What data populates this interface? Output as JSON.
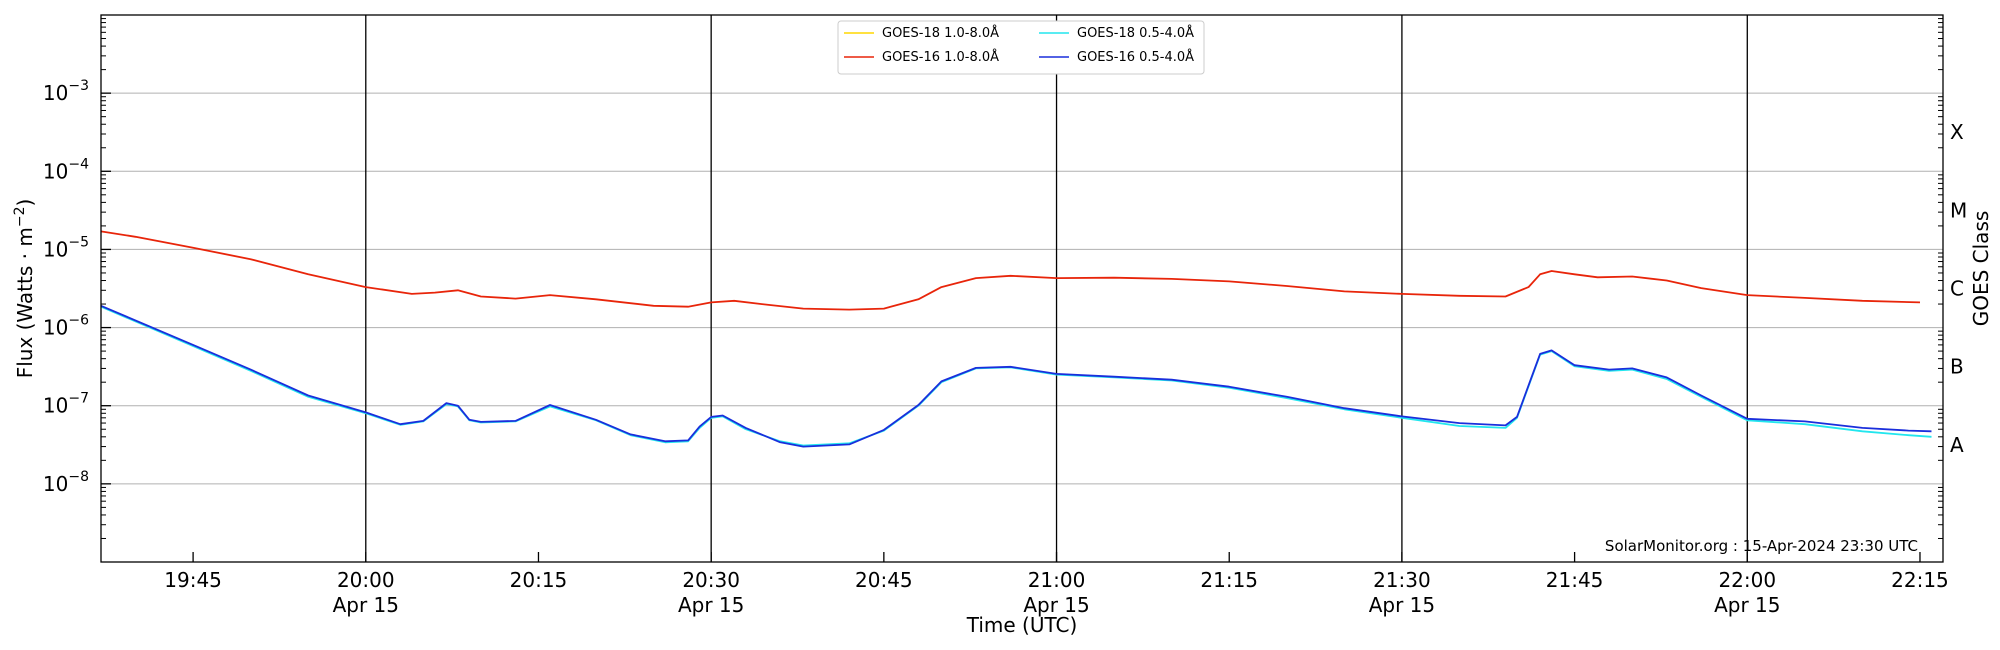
{
  "chart_data": {
    "type": "line",
    "xlabel": "Time (UTC)",
    "ylabel": "Flux (Watts · m",
    "ylabel_sup": "−2",
    "ylabel_close": ")",
    "y2label": "GOES Class",
    "yscale": "log",
    "xlim": [
      "19:37",
      "22:17"
    ],
    "ylim": [
      1e-09,
      0.01
    ],
    "grid": "horizontal",
    "legend_placement": "top-center",
    "x_ticks": [
      {
        "t": "19:45",
        "label": "19:45",
        "date": ""
      },
      {
        "t": "20:00",
        "label": "20:00",
        "date": "Apr 15"
      },
      {
        "t": "20:15",
        "label": "20:15",
        "date": ""
      },
      {
        "t": "20:30",
        "label": "20:30",
        "date": "Apr 15"
      },
      {
        "t": "20:45",
        "label": "20:45",
        "date": ""
      },
      {
        "t": "21:00",
        "label": "21:00",
        "date": "Apr 15"
      },
      {
        "t": "21:15",
        "label": "21:15",
        "date": ""
      },
      {
        "t": "21:30",
        "label": "21:30",
        "date": "Apr 15"
      },
      {
        "t": "21:45",
        "label": "21:45",
        "date": ""
      },
      {
        "t": "22:00",
        "label": "22:00",
        "date": "Apr 15"
      },
      {
        "t": "22:15",
        "label": "22:15",
        "date": ""
      }
    ],
    "vlines": [
      "20:00",
      "20:30",
      "21:00",
      "21:30",
      "22:00"
    ],
    "y_ticks": [
      {
        "exp": -8,
        "base": "10",
        "sup": "−8"
      },
      {
        "exp": -7,
        "base": "10",
        "sup": "−7"
      },
      {
        "exp": -6,
        "base": "10",
        "sup": "−6"
      },
      {
        "exp": -5,
        "base": "10",
        "sup": "−5"
      },
      {
        "exp": -4,
        "base": "10",
        "sup": "−4"
      },
      {
        "exp": -3,
        "base": "10",
        "sup": "−3"
      }
    ],
    "goes_classes": [
      {
        "label": "A",
        "exp": -8
      },
      {
        "label": "B",
        "exp": -7
      },
      {
        "label": "C",
        "exp": -6
      },
      {
        "label": "M",
        "exp": -5
      },
      {
        "label": "X",
        "exp": -4
      }
    ],
    "series": [
      {
        "name": "GOES-18 1.0-8.0Å",
        "color": "#ffd700",
        "points": []
      },
      {
        "name": "GOES-16 1.0-8.0Å",
        "color": "#e8250a",
        "points": [
          [
            "19:37",
            1.7e-05
          ],
          [
            "19:40",
            1.45e-05
          ],
          [
            "19:45",
            1.05e-05
          ],
          [
            "19:50",
            7.5e-06
          ],
          [
            "19:55",
            4.8e-06
          ],
          [
            "20:00",
            3.3e-06
          ],
          [
            "20:04",
            2.7e-06
          ],
          [
            "20:06",
            2.8e-06
          ],
          [
            "20:08",
            3e-06
          ],
          [
            "20:10",
            2.5e-06
          ],
          [
            "20:13",
            2.35e-06
          ],
          [
            "20:16",
            2.6e-06
          ],
          [
            "20:20",
            2.3e-06
          ],
          [
            "20:25",
            1.9e-06
          ],
          [
            "20:28",
            1.85e-06
          ],
          [
            "20:30",
            2.1e-06
          ],
          [
            "20:32",
            2.2e-06
          ],
          [
            "20:35",
            1.95e-06
          ],
          [
            "20:38",
            1.75e-06
          ],
          [
            "20:42",
            1.7e-06
          ],
          [
            "20:45",
            1.75e-06
          ],
          [
            "20:48",
            2.3e-06
          ],
          [
            "20:50",
            3.3e-06
          ],
          [
            "20:53",
            4.3e-06
          ],
          [
            "20:56",
            4.6e-06
          ],
          [
            "21:00",
            4.3e-06
          ],
          [
            "21:05",
            4.35e-06
          ],
          [
            "21:10",
            4.2e-06
          ],
          [
            "21:15",
            3.9e-06
          ],
          [
            "21:20",
            3.4e-06
          ],
          [
            "21:25",
            2.9e-06
          ],
          [
            "21:30",
            2.7e-06
          ],
          [
            "21:35",
            2.55e-06
          ],
          [
            "21:39",
            2.5e-06
          ],
          [
            "21:41",
            3.3e-06
          ],
          [
            "21:42",
            4.8e-06
          ],
          [
            "21:43",
            5.3e-06
          ],
          [
            "21:45",
            4.8e-06
          ],
          [
            "21:47",
            4.4e-06
          ],
          [
            "21:50",
            4.5e-06
          ],
          [
            "21:53",
            4e-06
          ],
          [
            "21:56",
            3.2e-06
          ],
          [
            "22:00",
            2.6e-06
          ],
          [
            "22:05",
            2.4e-06
          ],
          [
            "22:10",
            2.2e-06
          ],
          [
            "22:15",
            2.1e-06
          ]
        ]
      },
      {
        "name": "GOES-18 0.5-4.0Å",
        "color": "#22e6ee",
        "points": [
          [
            "19:37",
            1.85e-06
          ],
          [
            "19:45",
            5.8e-07
          ],
          [
            "19:50",
            2.8e-07
          ],
          [
            "19:55",
            1.3e-07
          ],
          [
            "20:00",
            8e-08
          ],
          [
            "20:03",
            5.7e-08
          ],
          [
            "20:05",
            6.3e-08
          ],
          [
            "20:07",
            1.05e-07
          ],
          [
            "20:08",
            9.8e-08
          ],
          [
            "20:09",
            6.5e-08
          ],
          [
            "20:10",
            6.1e-08
          ],
          [
            "20:13",
            6.3e-08
          ],
          [
            "20:16",
            9.8e-08
          ],
          [
            "20:20",
            6.5e-08
          ],
          [
            "20:23",
            4.2e-08
          ],
          [
            "20:26",
            3.4e-08
          ],
          [
            "20:28",
            3.5e-08
          ],
          [
            "20:29",
            5.2e-08
          ],
          [
            "20:30",
            7e-08
          ],
          [
            "20:31",
            7.3e-08
          ],
          [
            "20:33",
            5e-08
          ],
          [
            "20:36",
            3.5e-08
          ],
          [
            "20:38",
            3.1e-08
          ],
          [
            "20:42",
            3.3e-08
          ],
          [
            "20:45",
            4.8e-08
          ],
          [
            "20:48",
            1e-07
          ],
          [
            "20:50",
            2e-07
          ],
          [
            "20:53",
            3e-07
          ],
          [
            "20:56",
            3.1e-07
          ],
          [
            "21:00",
            2.5e-07
          ],
          [
            "21:05",
            2.3e-07
          ],
          [
            "21:10",
            2.1e-07
          ],
          [
            "21:15",
            1.7e-07
          ],
          [
            "21:20",
            1.25e-07
          ],
          [
            "21:25",
            9e-08
          ],
          [
            "21:30",
            7e-08
          ],
          [
            "21:35",
            5.5e-08
          ],
          [
            "21:39",
            5.2e-08
          ],
          [
            "21:40",
            7e-08
          ],
          [
            "21:42",
            4.5e-07
          ],
          [
            "21:43",
            5e-07
          ],
          [
            "21:45",
            3.2e-07
          ],
          [
            "21:48",
            2.8e-07
          ],
          [
            "21:50",
            2.9e-07
          ],
          [
            "21:53",
            2.2e-07
          ],
          [
            "21:56",
            1.3e-07
          ],
          [
            "22:00",
            6.5e-08
          ],
          [
            "22:05",
            5.8e-08
          ],
          [
            "22:10",
            4.7e-08
          ],
          [
            "22:14",
            4.2e-08
          ],
          [
            "22:16",
            4e-08
          ]
        ]
      },
      {
        "name": "GOES-16 0.5-4.0Å",
        "color": "#1a2edc",
        "points": [
          [
            "19:37",
            1.9e-06
          ],
          [
            "19:45",
            6e-07
          ],
          [
            "19:50",
            2.9e-07
          ],
          [
            "19:55",
            1.35e-07
          ],
          [
            "20:00",
            8.2e-08
          ],
          [
            "20:03",
            5.8e-08
          ],
          [
            "20:05",
            6.4e-08
          ],
          [
            "20:07",
            1.08e-07
          ],
          [
            "20:08",
            1e-07
          ],
          [
            "20:09",
            6.6e-08
          ],
          [
            "20:10",
            6.2e-08
          ],
          [
            "20:13",
            6.4e-08
          ],
          [
            "20:16",
            1.02e-07
          ],
          [
            "20:20",
            6.6e-08
          ],
          [
            "20:23",
            4.3e-08
          ],
          [
            "20:26",
            3.5e-08
          ],
          [
            "20:28",
            3.6e-08
          ],
          [
            "20:29",
            5.4e-08
          ],
          [
            "20:30",
            7.2e-08
          ],
          [
            "20:31",
            7.5e-08
          ],
          [
            "20:33",
            5.2e-08
          ],
          [
            "20:36",
            3.4e-08
          ],
          [
            "20:38",
            3e-08
          ],
          [
            "20:42",
            3.2e-08
          ],
          [
            "20:45",
            4.9e-08
          ],
          [
            "20:48",
            1.02e-07
          ],
          [
            "20:50",
            2.05e-07
          ],
          [
            "20:53",
            3.05e-07
          ],
          [
            "20:56",
            3.15e-07
          ],
          [
            "21:00",
            2.55e-07
          ],
          [
            "21:05",
            2.35e-07
          ],
          [
            "21:10",
            2.15e-07
          ],
          [
            "21:15",
            1.75e-07
          ],
          [
            "21:20",
            1.3e-07
          ],
          [
            "21:25",
            9.3e-08
          ],
          [
            "21:30",
            7.3e-08
          ],
          [
            "21:35",
            6e-08
          ],
          [
            "21:39",
            5.6e-08
          ],
          [
            "21:40",
            7.2e-08
          ],
          [
            "21:42",
            4.6e-07
          ],
          [
            "21:43",
            5.1e-07
          ],
          [
            "21:45",
            3.3e-07
          ],
          [
            "21:48",
            2.9e-07
          ],
          [
            "21:50",
            3e-07
          ],
          [
            "21:53",
            2.3e-07
          ],
          [
            "21:56",
            1.35e-07
          ],
          [
            "22:00",
            6.8e-08
          ],
          [
            "22:05",
            6.3e-08
          ],
          [
            "22:10",
            5.2e-08
          ],
          [
            "22:14",
            4.8e-08
          ],
          [
            "22:16",
            4.7e-08
          ]
        ]
      }
    ],
    "credit": "SolarMonitor.org : 15-Apr-2024 23:30 UTC"
  }
}
